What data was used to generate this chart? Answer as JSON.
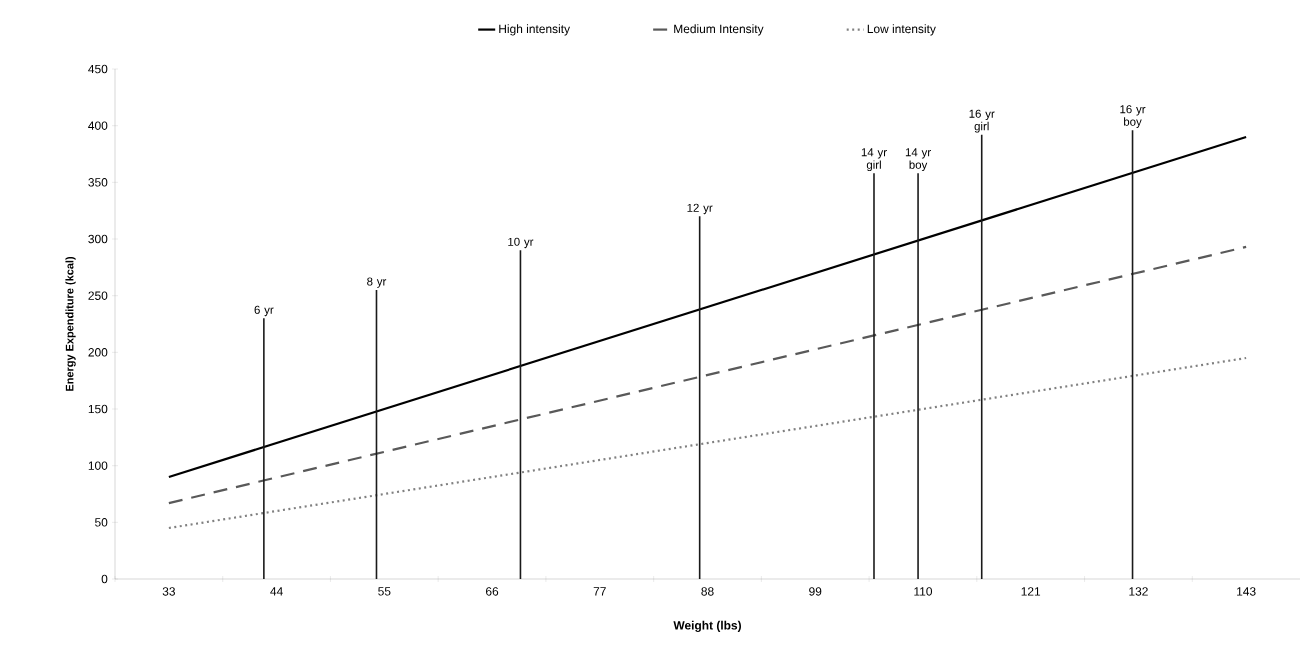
{
  "chart_data": {
    "type": "line",
    "xlabel": "Weight (lbs)",
    "ylabel": "Energy Expenditure (kcal)",
    "xlim": [
      27.5,
      148.5
    ],
    "ylim": [
      0,
      450
    ],
    "xticks": [
      {
        "value": 27.5,
        "label": null
      },
      33,
      {
        "value": 38.5,
        "label": null
      },
      44,
      {
        "value": 49.5,
        "label": null
      },
      55,
      {
        "value": 60.5,
        "label": null
      },
      66,
      {
        "value": 71.5,
        "label": null
      },
      77,
      {
        "value": 82.5,
        "label": null
      },
      88,
      {
        "value": 93.5,
        "label": null
      },
      99,
      {
        "value": 104.5,
        "label": null
      },
      110,
      {
        "value": 115.5,
        "label": null
      },
      121,
      {
        "value": 126.5,
        "label": null
      },
      132,
      {
        "value": 137.5,
        "label": null
      },
      143
    ],
    "yticks": [
      0,
      50,
      100,
      150,
      200,
      250,
      300,
      350,
      400,
      450
    ],
    "grid": false,
    "legend": "top",
    "marker": "none",
    "series": [
      {
        "name": "High intensity",
        "color": "#000000",
        "line_style": "solid",
        "x": [
          33,
          143
        ],
        "values": [
          90,
          390
        ]
      },
      {
        "name": "Medium Intensity",
        "color": "#595959",
        "line_style": "dashed",
        "x": [
          33,
          143
        ],
        "values": [
          67,
          293
        ]
      },
      {
        "name": "Low intensity",
        "color": "#808080",
        "line_style": "dotted",
        "x": [
          33,
          143
        ],
        "values": [
          45,
          195
        ]
      },
      {
        "type": "bar",
        "color": "#1a1a1a",
        "x": [
          42.7,
          54.2,
          68.9,
          87.2,
          105.0,
          109.5,
          116.0,
          131.4
        ],
        "values": [
          230,
          255,
          290,
          320,
          358,
          358,
          392,
          396
        ]
      }
    ],
    "annotations": [
      {
        "text": "6 yr",
        "x": 42.7,
        "y": 230
      },
      {
        "text": "8 yr",
        "x": 54.2,
        "y": 255
      },
      {
        "text": "10 yr",
        "x": 68.9,
        "y": 290
      },
      {
        "text": "12 yr",
        "x": 87.2,
        "y": 320
      },
      {
        "text": "14 yr girl",
        "x": 105.0,
        "y": 358
      },
      {
        "text": "14 yr boy",
        "x": 109.5,
        "y": 358
      },
      {
        "text": "16 yr girl",
        "x": 116.0,
        "y": 392
      },
      {
        "text": "16 yr boy",
        "x": 131.4,
        "y": 396
      }
    ]
  }
}
